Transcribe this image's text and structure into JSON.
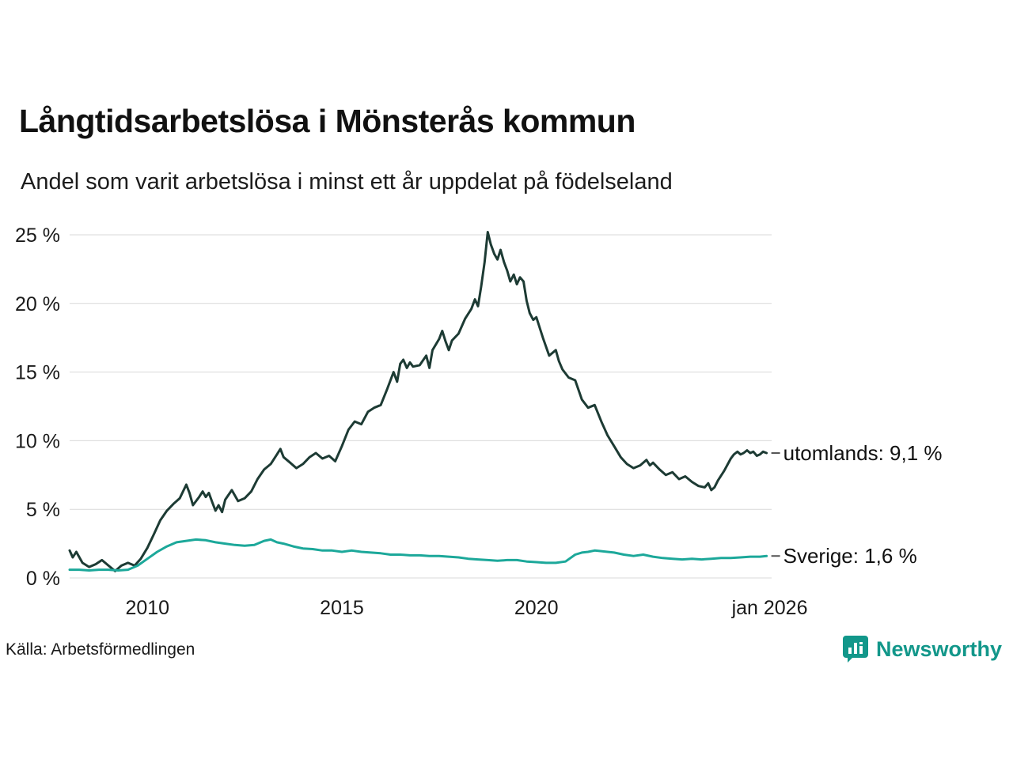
{
  "title": "Långtidsarbetslösa i Mönsterås kommun",
  "subtitle": "Andel som varit arbetslösa i minst ett år uppdelat på födelseland",
  "source": "Källa: Arbetsförmedlingen",
  "branding": {
    "name": "Newsworthy",
    "color": "#12978a",
    "icon": "bar-chart-pin-logo"
  },
  "colors": {
    "grid": "#d9d9d9",
    "text": "#1a1a1a",
    "label": "#111111",
    "leader": "#555555"
  },
  "chart_data": {
    "type": "line",
    "title": "Långtidsarbetslösa i Mönsterås kommun",
    "subtitle": "Andel som varit arbetslösa i minst ett år uppdelat på födelseland",
    "xlabel": "",
    "ylabel": "",
    "grid": "horizontal-only",
    "legend_position": "end-of-line-labels",
    "ylim": [
      0,
      25
    ],
    "xlim": [
      2008.0,
      2026.05
    ],
    "y_ticks": [
      0,
      5,
      10,
      15,
      20,
      25
    ],
    "y_tick_suffix": " %",
    "x_ticks": [
      {
        "v": 2010,
        "label": "2010"
      },
      {
        "v": 2015,
        "label": "2015"
      },
      {
        "v": 2020,
        "label": "2020"
      },
      {
        "v": 2026,
        "label": "jan 2026"
      }
    ],
    "series": [
      {
        "name": "utomlands",
        "label": "utomlands: 9,1 %",
        "color": "#1d3b34",
        "last_value": 9.1,
        "points": [
          [
            2008.0,
            2.0
          ],
          [
            2008.08,
            1.5
          ],
          [
            2008.17,
            1.9
          ],
          [
            2008.33,
            1.1
          ],
          [
            2008.5,
            0.8
          ],
          [
            2008.67,
            1.0
          ],
          [
            2008.83,
            1.3
          ],
          [
            2009.0,
            0.9
          ],
          [
            2009.17,
            0.5
          ],
          [
            2009.33,
            0.9
          ],
          [
            2009.5,
            1.1
          ],
          [
            2009.67,
            0.9
          ],
          [
            2009.83,
            1.4
          ],
          [
            2010.0,
            2.2
          ],
          [
            2010.17,
            3.2
          ],
          [
            2010.33,
            4.2
          ],
          [
            2010.5,
            4.9
          ],
          [
            2010.67,
            5.4
          ],
          [
            2010.83,
            5.8
          ],
          [
            2011.0,
            6.8
          ],
          [
            2011.08,
            6.2
          ],
          [
            2011.17,
            5.3
          ],
          [
            2011.33,
            5.9
          ],
          [
            2011.42,
            6.3
          ],
          [
            2011.5,
            5.9
          ],
          [
            2011.58,
            6.2
          ],
          [
            2011.67,
            5.5
          ],
          [
            2011.75,
            4.9
          ],
          [
            2011.83,
            5.3
          ],
          [
            2011.92,
            4.8
          ],
          [
            2012.0,
            5.7
          ],
          [
            2012.17,
            6.4
          ],
          [
            2012.33,
            5.6
          ],
          [
            2012.5,
            5.8
          ],
          [
            2012.67,
            6.3
          ],
          [
            2012.83,
            7.2
          ],
          [
            2013.0,
            7.9
          ],
          [
            2013.17,
            8.3
          ],
          [
            2013.33,
            9.0
          ],
          [
            2013.42,
            9.4
          ],
          [
            2013.5,
            8.8
          ],
          [
            2013.67,
            8.4
          ],
          [
            2013.83,
            8.0
          ],
          [
            2014.0,
            8.3
          ],
          [
            2014.17,
            8.8
          ],
          [
            2014.33,
            9.1
          ],
          [
            2014.5,
            8.7
          ],
          [
            2014.67,
            8.9
          ],
          [
            2014.83,
            8.5
          ],
          [
            2015.0,
            9.6
          ],
          [
            2015.17,
            10.8
          ],
          [
            2015.33,
            11.4
          ],
          [
            2015.5,
            11.2
          ],
          [
            2015.67,
            12.1
          ],
          [
            2015.83,
            12.4
          ],
          [
            2016.0,
            12.6
          ],
          [
            2016.17,
            13.8
          ],
          [
            2016.33,
            15.0
          ],
          [
            2016.42,
            14.3
          ],
          [
            2016.5,
            15.6
          ],
          [
            2016.58,
            15.9
          ],
          [
            2016.67,
            15.3
          ],
          [
            2016.75,
            15.7
          ],
          [
            2016.83,
            15.4
          ],
          [
            2017.0,
            15.5
          ],
          [
            2017.17,
            16.2
          ],
          [
            2017.25,
            15.3
          ],
          [
            2017.33,
            16.6
          ],
          [
            2017.5,
            17.4
          ],
          [
            2017.58,
            18.0
          ],
          [
            2017.67,
            17.2
          ],
          [
            2017.75,
            16.6
          ],
          [
            2017.83,
            17.3
          ],
          [
            2018.0,
            17.8
          ],
          [
            2018.17,
            18.9
          ],
          [
            2018.33,
            19.6
          ],
          [
            2018.42,
            20.3
          ],
          [
            2018.5,
            19.8
          ],
          [
            2018.58,
            21.2
          ],
          [
            2018.67,
            23.0
          ],
          [
            2018.75,
            25.2
          ],
          [
            2018.83,
            24.3
          ],
          [
            2018.92,
            23.6
          ],
          [
            2019.0,
            23.2
          ],
          [
            2019.08,
            23.9
          ],
          [
            2019.17,
            23.0
          ],
          [
            2019.25,
            22.4
          ],
          [
            2019.33,
            21.6
          ],
          [
            2019.42,
            22.1
          ],
          [
            2019.5,
            21.4
          ],
          [
            2019.58,
            21.9
          ],
          [
            2019.67,
            21.6
          ],
          [
            2019.75,
            20.2
          ],
          [
            2019.83,
            19.3
          ],
          [
            2019.92,
            18.8
          ],
          [
            2020.0,
            19.0
          ],
          [
            2020.17,
            17.5
          ],
          [
            2020.33,
            16.2
          ],
          [
            2020.5,
            16.6
          ],
          [
            2020.58,
            15.8
          ],
          [
            2020.67,
            15.2
          ],
          [
            2020.83,
            14.6
          ],
          [
            2021.0,
            14.4
          ],
          [
            2021.17,
            13.0
          ],
          [
            2021.33,
            12.4
          ],
          [
            2021.5,
            12.6
          ],
          [
            2021.67,
            11.4
          ],
          [
            2021.83,
            10.4
          ],
          [
            2022.0,
            9.6
          ],
          [
            2022.17,
            8.8
          ],
          [
            2022.33,
            8.3
          ],
          [
            2022.5,
            8.0
          ],
          [
            2022.67,
            8.2
          ],
          [
            2022.83,
            8.6
          ],
          [
            2022.92,
            8.2
          ],
          [
            2023.0,
            8.4
          ],
          [
            2023.17,
            7.9
          ],
          [
            2023.33,
            7.5
          ],
          [
            2023.5,
            7.7
          ],
          [
            2023.67,
            7.2
          ],
          [
            2023.83,
            7.4
          ],
          [
            2024.0,
            7.0
          ],
          [
            2024.17,
            6.7
          ],
          [
            2024.33,
            6.6
          ],
          [
            2024.42,
            6.9
          ],
          [
            2024.5,
            6.4
          ],
          [
            2024.58,
            6.6
          ],
          [
            2024.67,
            7.1
          ],
          [
            2024.83,
            7.8
          ],
          [
            2025.0,
            8.7
          ],
          [
            2025.08,
            9.0
          ],
          [
            2025.17,
            9.2
          ],
          [
            2025.25,
            9.0
          ],
          [
            2025.33,
            9.1
          ],
          [
            2025.42,
            9.3
          ],
          [
            2025.5,
            9.1
          ],
          [
            2025.58,
            9.2
          ],
          [
            2025.67,
            8.9
          ],
          [
            2025.75,
            9.0
          ],
          [
            2025.83,
            9.2
          ],
          [
            2025.92,
            9.1
          ]
        ]
      },
      {
        "name": "sverige",
        "label": "Sverige: 1,6 %",
        "color": "#1ca89a",
        "last_value": 1.6,
        "points": [
          [
            2008.0,
            0.6
          ],
          [
            2008.25,
            0.6
          ],
          [
            2008.5,
            0.55
          ],
          [
            2008.75,
            0.6
          ],
          [
            2009.0,
            0.6
          ],
          [
            2009.25,
            0.55
          ],
          [
            2009.5,
            0.6
          ],
          [
            2009.75,
            0.9
          ],
          [
            2010.0,
            1.4
          ],
          [
            2010.25,
            1.9
          ],
          [
            2010.5,
            2.3
          ],
          [
            2010.75,
            2.6
          ],
          [
            2011.0,
            2.7
          ],
          [
            2011.25,
            2.8
          ],
          [
            2011.5,
            2.75
          ],
          [
            2011.75,
            2.6
          ],
          [
            2012.0,
            2.5
          ],
          [
            2012.25,
            2.4
          ],
          [
            2012.5,
            2.35
          ],
          [
            2012.75,
            2.4
          ],
          [
            2013.0,
            2.7
          ],
          [
            2013.17,
            2.8
          ],
          [
            2013.33,
            2.6
          ],
          [
            2013.5,
            2.5
          ],
          [
            2013.75,
            2.3
          ],
          [
            2014.0,
            2.15
          ],
          [
            2014.25,
            2.1
          ],
          [
            2014.5,
            2.0
          ],
          [
            2014.75,
            2.0
          ],
          [
            2015.0,
            1.9
          ],
          [
            2015.25,
            2.0
          ],
          [
            2015.5,
            1.9
          ],
          [
            2015.75,
            1.85
          ],
          [
            2016.0,
            1.8
          ],
          [
            2016.25,
            1.7
          ],
          [
            2016.5,
            1.7
          ],
          [
            2016.75,
            1.65
          ],
          [
            2017.0,
            1.65
          ],
          [
            2017.25,
            1.6
          ],
          [
            2017.5,
            1.6
          ],
          [
            2017.75,
            1.55
          ],
          [
            2018.0,
            1.5
          ],
          [
            2018.25,
            1.4
          ],
          [
            2018.5,
            1.35
          ],
          [
            2018.75,
            1.3
          ],
          [
            2019.0,
            1.25
          ],
          [
            2019.25,
            1.3
          ],
          [
            2019.5,
            1.3
          ],
          [
            2019.75,
            1.2
          ],
          [
            2020.0,
            1.15
          ],
          [
            2020.25,
            1.1
          ],
          [
            2020.5,
            1.1
          ],
          [
            2020.75,
            1.2
          ],
          [
            2021.0,
            1.7
          ],
          [
            2021.17,
            1.85
          ],
          [
            2021.33,
            1.9
          ],
          [
            2021.5,
            2.0
          ],
          [
            2021.67,
            1.95
          ],
          [
            2021.83,
            1.9
          ],
          [
            2022.0,
            1.85
          ],
          [
            2022.25,
            1.7
          ],
          [
            2022.5,
            1.6
          ],
          [
            2022.75,
            1.7
          ],
          [
            2023.0,
            1.55
          ],
          [
            2023.25,
            1.45
          ],
          [
            2023.5,
            1.4
          ],
          [
            2023.75,
            1.35
          ],
          [
            2024.0,
            1.4
          ],
          [
            2024.25,
            1.35
          ],
          [
            2024.5,
            1.4
          ],
          [
            2024.75,
            1.45
          ],
          [
            2025.0,
            1.45
          ],
          [
            2025.25,
            1.5
          ],
          [
            2025.5,
            1.55
          ],
          [
            2025.75,
            1.55
          ],
          [
            2025.92,
            1.6
          ]
        ]
      }
    ]
  }
}
